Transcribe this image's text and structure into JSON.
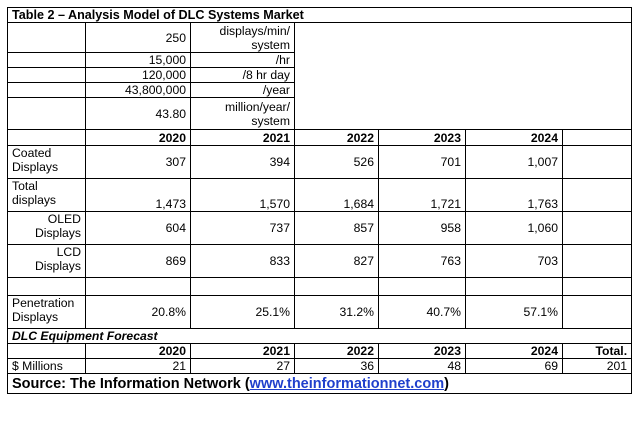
{
  "table": {
    "title": "Table 2 – Analysis Model of DLC Systems Market",
    "model": [
      {
        "value": "250",
        "unit": "displays/min/ system"
      },
      {
        "value": "15,000",
        "unit": "/hr"
      },
      {
        "value": "120,000",
        "unit": "/8 hr day"
      },
      {
        "value": "43,800,000",
        "unit": "/year"
      },
      {
        "value": "43.80",
        "unit": "million/year/ system"
      }
    ],
    "years": [
      "2020",
      "2021",
      "2022",
      "2023",
      "2024"
    ],
    "rows": [
      {
        "label": "Coated Displays",
        "values": [
          "307",
          "394",
          "526",
          "701",
          "1,007"
        ]
      },
      {
        "label": "Total displays",
        "values": [
          "1,473",
          "1,570",
          "1,684",
          "1,721",
          "1,763"
        ]
      },
      {
        "label": "OLED Displays",
        "values": [
          "604",
          "737",
          "857",
          "958",
          "1,060"
        ]
      },
      {
        "label": "LCD Displays",
        "values": [
          "869",
          "833",
          "827",
          "763",
          "703"
        ]
      },
      {
        "label": "Penetration Displays",
        "values": [
          "20.8%",
          "25.1%",
          "31.2%",
          "40.7%",
          "57.1%"
        ]
      }
    ],
    "forecast": {
      "heading": "DLC Equipment  Forecast",
      "years": [
        "2020",
        "2021",
        "2022",
        "2023",
        "2024"
      ],
      "total_label": "Total.",
      "row_label": "$ Millions",
      "values": [
        "21",
        "27",
        "36",
        "48",
        "69"
      ],
      "total": "201"
    },
    "source": {
      "prefix": "Source: The Information Network (",
      "link": "www.theinformationnet.com",
      "suffix": ")"
    }
  }
}
